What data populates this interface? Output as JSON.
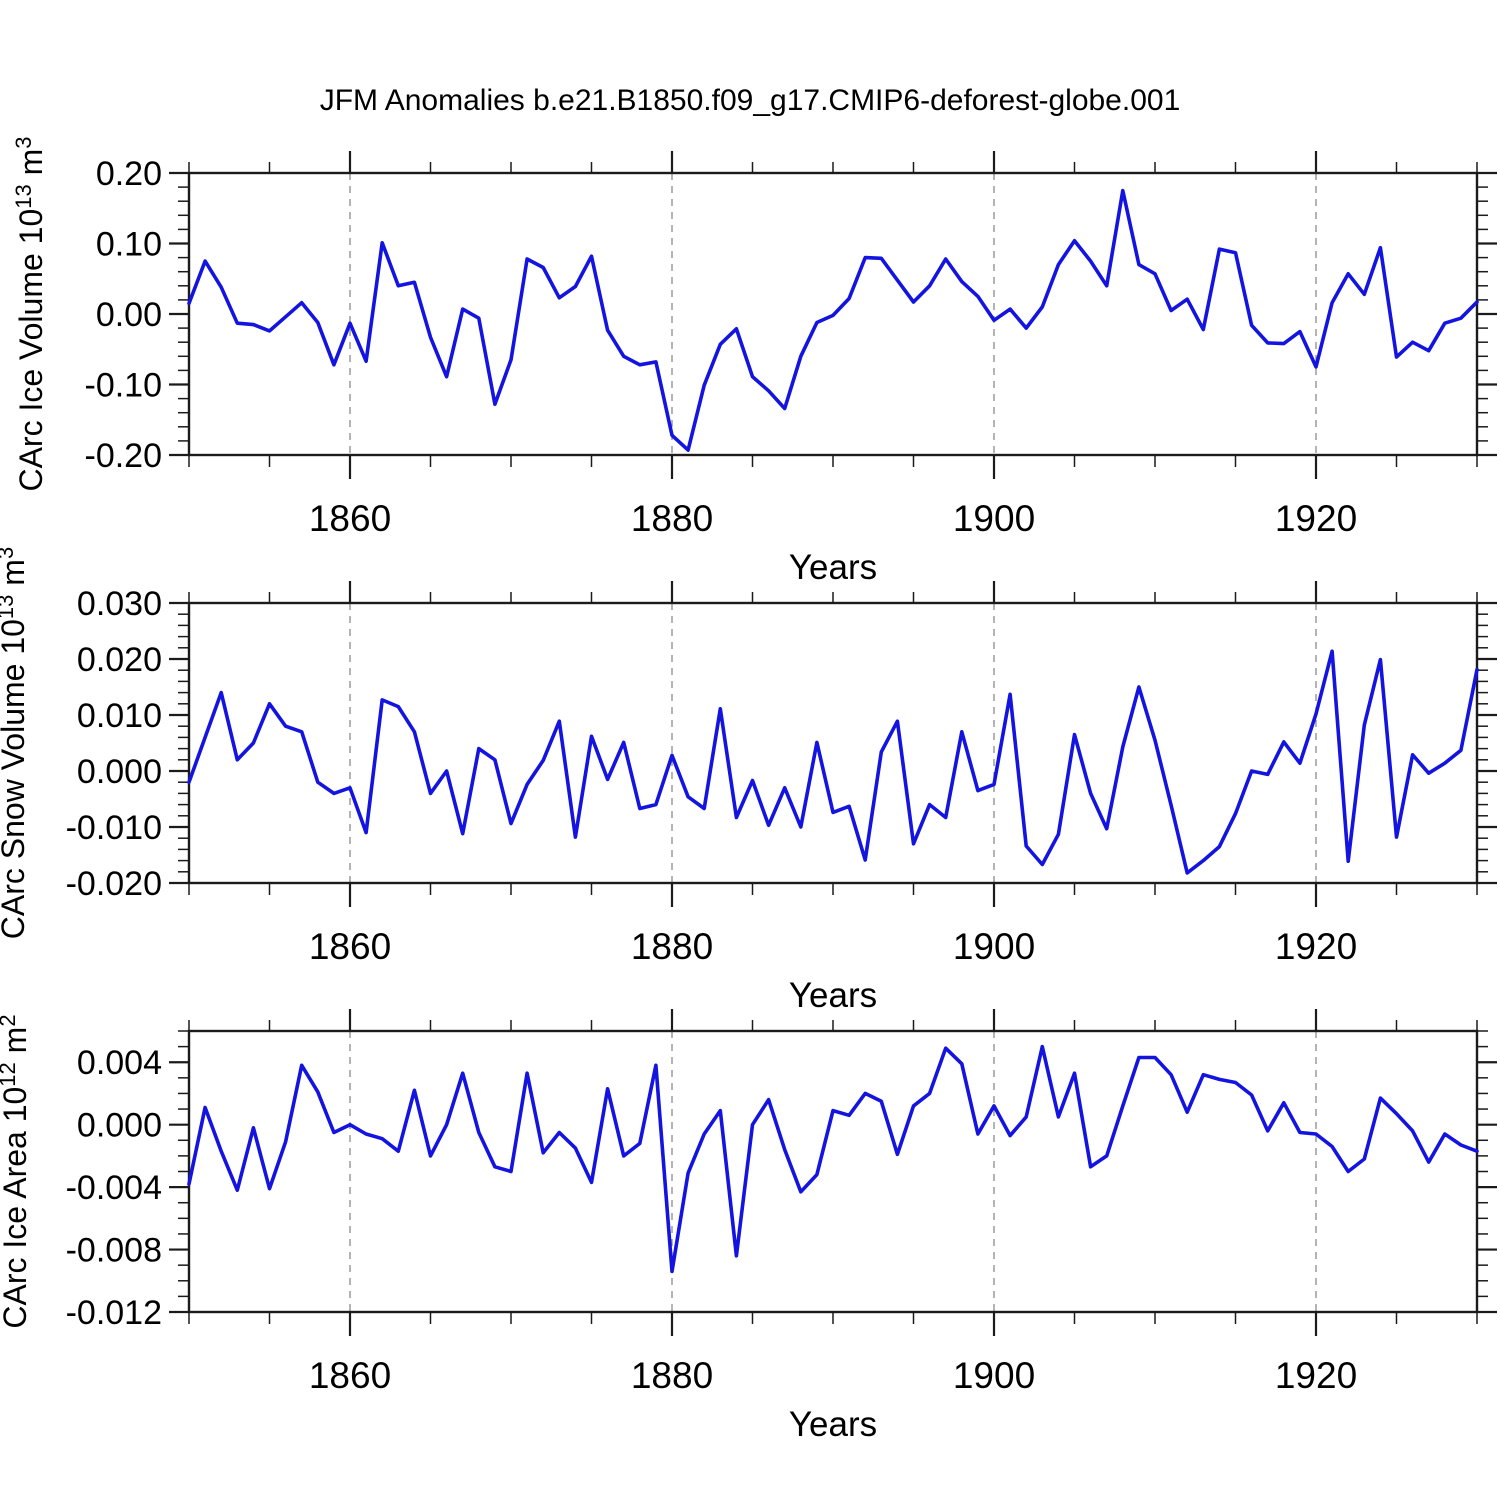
{
  "page": {
    "background": "#ffffff"
  },
  "chart_data": {
    "type": "line",
    "title": "JFM Anomalies b.e21.B1850.f09_g17.CMIP6-deforest-globe.001",
    "xlabel": "Years",
    "legend": "none",
    "grid": "vertical-dashed-at-major-x",
    "line_color": "#1414e0",
    "axis_color": "#1b1b1b",
    "grid_color": "#8c8c8c",
    "x_range": [
      1850,
      1930
    ],
    "x_ticks_major": [
      1860,
      1880,
      1900,
      1920
    ],
    "x_tick_minor_step": 5,
    "x": [
      1850,
      1851,
      1852,
      1853,
      1854,
      1855,
      1856,
      1857,
      1858,
      1859,
      1860,
      1861,
      1862,
      1863,
      1864,
      1865,
      1866,
      1867,
      1868,
      1869,
      1870,
      1871,
      1872,
      1873,
      1874,
      1875,
      1876,
      1877,
      1878,
      1879,
      1880,
      1881,
      1882,
      1883,
      1884,
      1885,
      1886,
      1887,
      1888,
      1889,
      1890,
      1891,
      1892,
      1893,
      1894,
      1895,
      1896,
      1897,
      1898,
      1899,
      1900,
      1901,
      1902,
      1903,
      1904,
      1905,
      1906,
      1907,
      1908,
      1909,
      1910,
      1911,
      1912,
      1913,
      1914,
      1915,
      1916,
      1917,
      1918,
      1919,
      1920,
      1921,
      1922,
      1923,
      1924,
      1925,
      1926,
      1927,
      1928,
      1929,
      1930
    ],
    "panels": [
      {
        "ylabel_plain": "CArc Ice Volume 10¹³ m³",
        "ylabel_parts": [
          [
            "CArc Ice Volume 10",
            0
          ],
          [
            "13",
            1
          ],
          [
            " m",
            0
          ],
          [
            "3",
            1
          ]
        ],
        "ylim": [
          -0.2,
          0.2
        ],
        "y_minor_step": 0.02,
        "y_ticks": [
          {
            "v": 0.2,
            "label": "0.20"
          },
          {
            "v": 0.1,
            "label": "0.10"
          },
          {
            "v": 0.0,
            "label": "0.00"
          },
          {
            "v": -0.1,
            "label": "-0.10"
          },
          {
            "v": -0.2,
            "label": "-0.20"
          }
        ],
        "values": [
          0.015,
          0.075,
          0.038,
          -0.013,
          -0.015,
          -0.024,
          -0.004,
          0.016,
          -0.012,
          -0.072,
          -0.013,
          -0.067,
          0.101,
          0.04,
          0.045,
          -0.033,
          -0.089,
          0.007,
          -0.006,
          -0.128,
          -0.065,
          0.078,
          0.066,
          0.023,
          0.039,
          0.082,
          -0.023,
          -0.06,
          -0.072,
          -0.068,
          -0.172,
          -0.193,
          -0.101,
          -0.043,
          -0.021,
          -0.089,
          -0.109,
          -0.134,
          -0.06,
          -0.012,
          -0.002,
          0.022,
          0.08,
          0.079,
          0.048,
          0.017,
          0.04,
          0.078,
          0.046,
          0.025,
          -0.009,
          0.007,
          -0.02,
          0.01,
          0.07,
          0.104,
          0.075,
          0.04,
          0.175,
          0.07,
          0.057,
          0.005,
          0.021,
          -0.022,
          0.092,
          0.087,
          -0.016,
          -0.041,
          -0.042,
          -0.025,
          -0.075,
          0.016,
          0.057,
          0.028,
          0.094,
          -0.061,
          -0.04,
          -0.052,
          -0.013,
          -0.006,
          0.017
        ]
      },
      {
        "ylabel_plain": "CArc Snow Volume 10¹³ m³",
        "ylabel_parts": [
          [
            "CArc Snow Volume 10",
            0
          ],
          [
            "13",
            1
          ],
          [
            " m",
            0
          ],
          [
            "3",
            1
          ]
        ],
        "ylim": [
          -0.02,
          0.03
        ],
        "y_minor_step": 0.002,
        "y_ticks": [
          {
            "v": 0.03,
            "label": "0.030"
          },
          {
            "v": 0.02,
            "label": "0.020"
          },
          {
            "v": 0.01,
            "label": "0.010"
          },
          {
            "v": 0.0,
            "label": "0.000"
          },
          {
            "v": -0.01,
            "label": "-0.010"
          },
          {
            "v": -0.02,
            "label": "-0.020"
          }
        ],
        "values": [
          -0.002,
          0.006,
          0.014,
          0.002,
          0.005,
          0.012,
          0.008,
          0.007,
          -0.002,
          -0.004,
          -0.003,
          -0.011,
          0.0127,
          0.0115,
          0.007,
          -0.004,
          0.0,
          -0.0112,
          0.004,
          0.002,
          -0.0094,
          -0.0024,
          0.0019,
          0.0089,
          -0.0118,
          0.0062,
          -0.0015,
          0.0051,
          -0.0067,
          -0.006,
          0.0028,
          -0.0046,
          -0.0067,
          0.0111,
          -0.0083,
          -0.0017,
          -0.0097,
          -0.003,
          -0.01,
          0.0051,
          -0.0074,
          -0.0063,
          -0.0159,
          0.0034,
          0.0089,
          -0.013,
          -0.006,
          -0.0083,
          0.007,
          -0.0035,
          -0.0024,
          0.0137,
          -0.0134,
          -0.0167,
          -0.0113,
          0.0065,
          -0.004,
          -0.0103,
          0.0043,
          0.015,
          0.0055,
          -0.0061,
          -0.0182,
          -0.016,
          -0.0135,
          -0.0076,
          0.0,
          -0.0006,
          0.0052,
          0.0014,
          0.0102,
          0.0214,
          -0.0161,
          0.0082,
          0.0199,
          -0.0118,
          0.0029,
          -0.0004,
          0.0014,
          0.0037,
          0.0181
        ]
      },
      {
        "ylabel_plain": "CArc Ice Area 10¹² m²",
        "ylabel_parts": [
          [
            "CArc Ice Area 10",
            0
          ],
          [
            "12",
            1
          ],
          [
            " m",
            0
          ],
          [
            "2",
            1
          ]
        ],
        "ylim": [
          -0.012,
          0.006
        ],
        "y_minor_step": 0.001,
        "y_ticks": [
          {
            "v": 0.004,
            "label": "0.004"
          },
          {
            "v": 0.0,
            "label": "0.000"
          },
          {
            "v": -0.004,
            "label": "-0.004"
          },
          {
            "v": -0.008,
            "label": "-0.008"
          },
          {
            "v": -0.012,
            "label": "-0.012"
          }
        ],
        "values": [
          -0.0038,
          0.0011,
          -0.0017,
          -0.0042,
          -0.0002,
          -0.0041,
          -0.0011,
          0.0038,
          0.0021,
          -0.0005,
          0.0,
          -0.0006,
          -0.0009,
          -0.0017,
          0.0022,
          -0.002,
          0.0,
          0.0033,
          -0.0005,
          -0.0027,
          -0.003,
          0.0033,
          -0.0018,
          -0.0005,
          -0.0015,
          -0.0037,
          0.0023,
          -0.002,
          -0.0012,
          0.0038,
          -0.0094,
          -0.0031,
          -0.0006,
          0.0009,
          -0.0084,
          0.0,
          0.0016,
          -0.0016,
          -0.0043,
          -0.0032,
          0.0009,
          0.0006,
          0.002,
          0.0015,
          -0.0019,
          0.0012,
          0.002,
          0.0049,
          0.0039,
          -0.0006,
          0.0012,
          -0.0007,
          0.0005,
          0.005,
          0.0005,
          0.0033,
          -0.0027,
          -0.002,
          0.0012,
          0.0043,
          0.0043,
          0.0032,
          0.0008,
          0.0032,
          0.0029,
          0.0027,
          0.0019,
          -0.0004,
          0.0014,
          -0.0005,
          -0.0006,
          -0.0014,
          -0.003,
          -0.0022,
          0.0017,
          0.0007,
          -0.0004,
          -0.0024,
          -0.0006,
          -0.0013,
          -0.0017
        ]
      }
    ]
  }
}
